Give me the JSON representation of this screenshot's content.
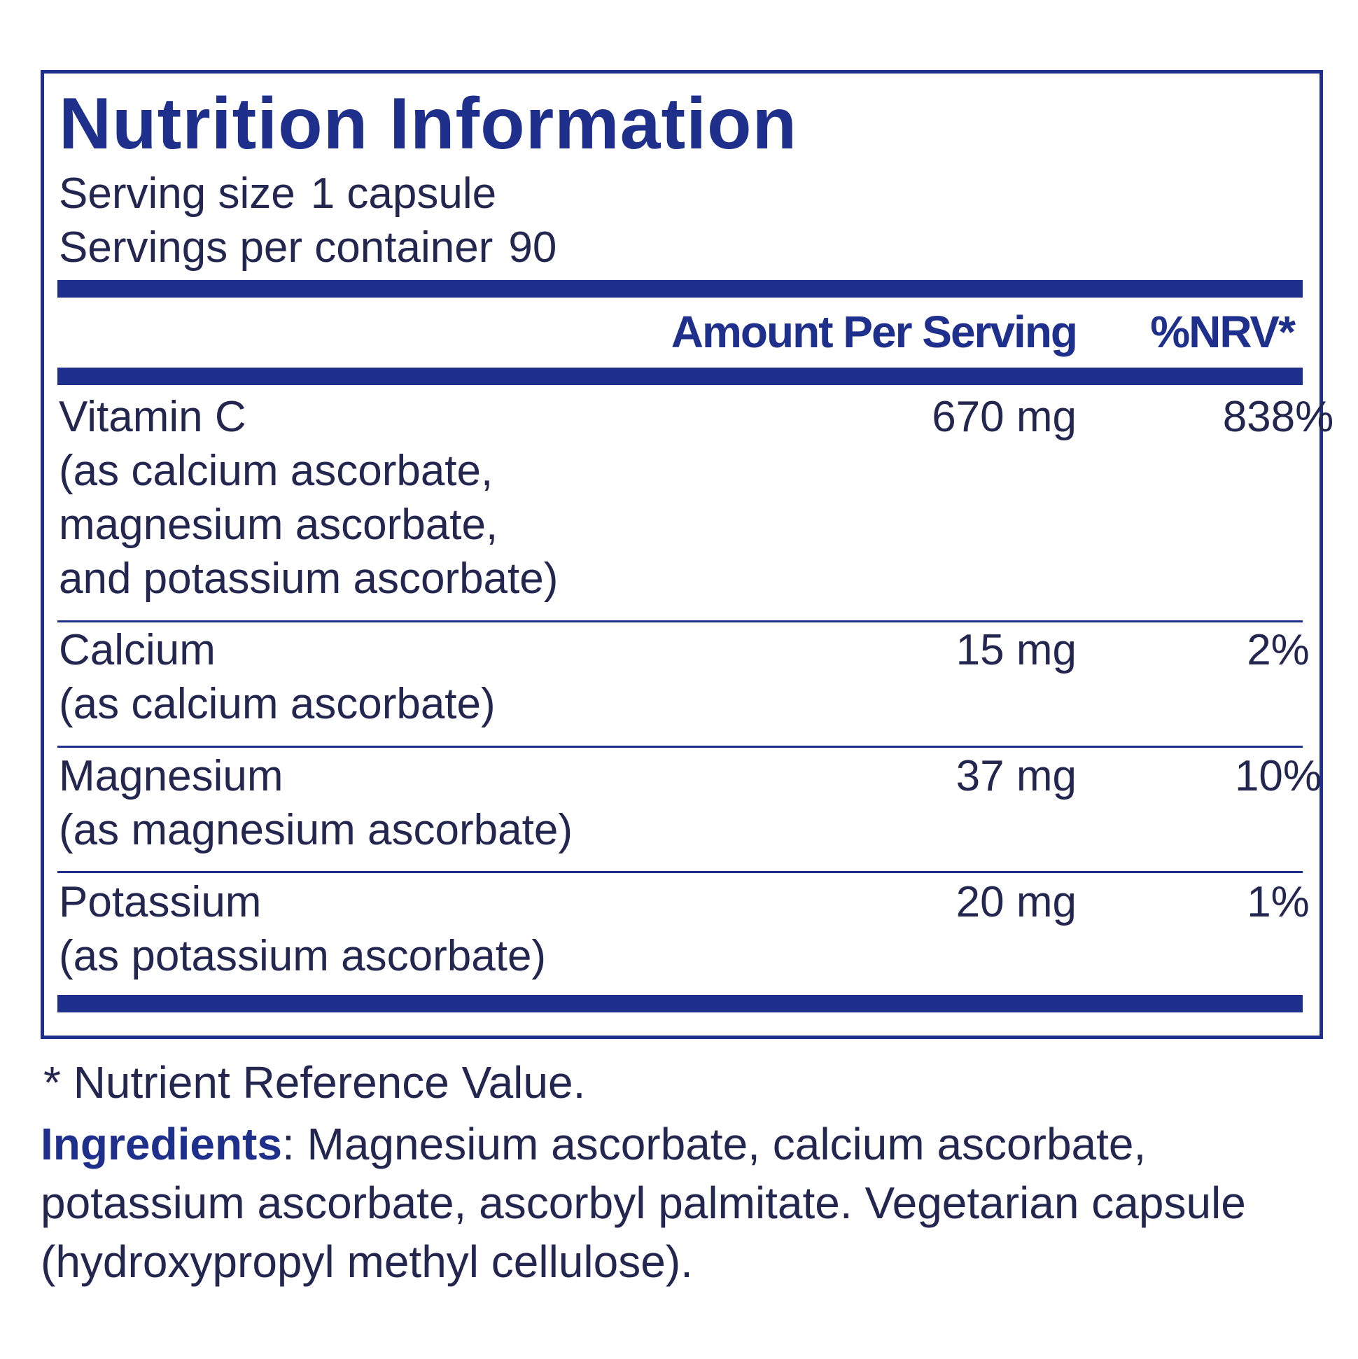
{
  "header": {
    "title": "Nutrition Information",
    "serving_size_label": "Serving size",
    "serving_size": "1 capsule",
    "servings_label": "Servings per container",
    "servings": "90"
  },
  "table": {
    "columns": [
      "Amount Per Serving",
      "%NRV*"
    ],
    "rows": [
      {
        "nutrient": "Vitamin C",
        "source": [
          "(as calcium ascorbate,",
          "magnesium ascorbate,",
          "and potassium ascorbate)"
        ],
        "amount": "670 mg",
        "nrv": "838%"
      },
      {
        "nutrient": "Calcium",
        "source": [
          "(as calcium ascorbate)"
        ],
        "amount": "15 mg",
        "nrv": "2%"
      },
      {
        "nutrient": "Magnesium",
        "source": [
          "(as magnesium ascorbate)"
        ],
        "amount": "37 mg",
        "nrv": "10%"
      },
      {
        "nutrient": "Potassium",
        "source": [
          "(as potassium ascorbate)"
        ],
        "amount": "20 mg",
        "nrv": "1%"
      }
    ]
  },
  "footnote": "* Nutrient Reference Value.",
  "ingredients": {
    "label": "Ingredients",
    "text": ": Magnesium ascorbate, calcium ascorbate, potassium ascorbate, ascorbyl palmitate. Vegetarian capsule (hydroxypropyl methyl cellulose)."
  }
}
